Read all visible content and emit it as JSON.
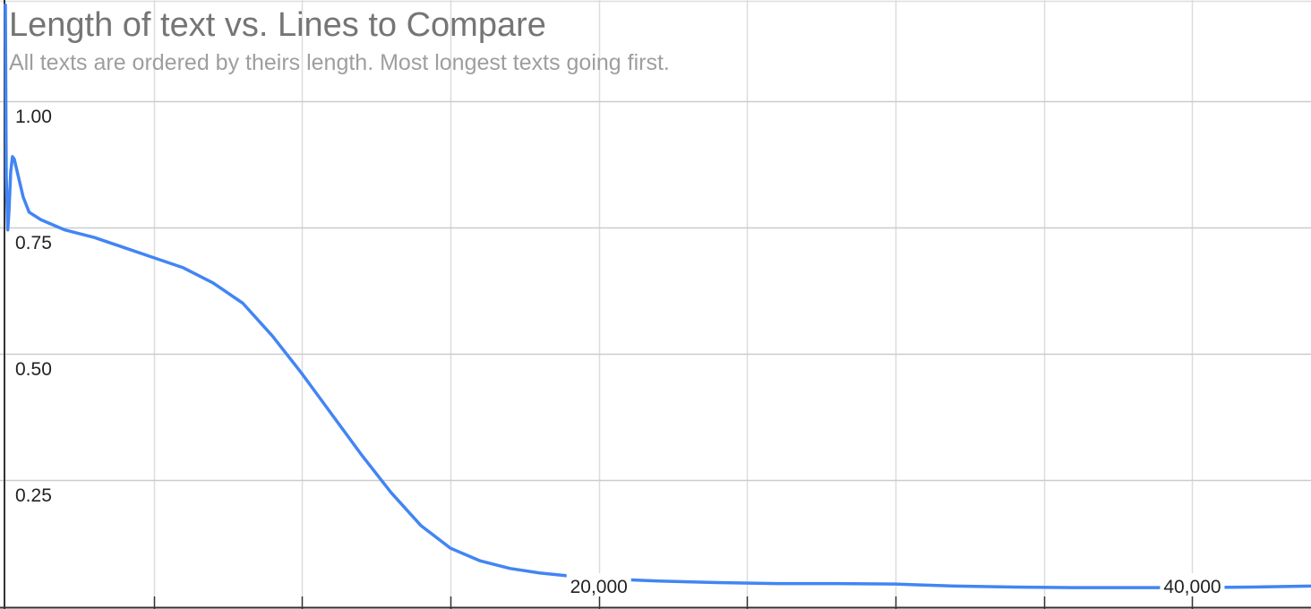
{
  "chart_data": {
    "type": "line",
    "title": "Length of text vs. Lines to Compare",
    "subtitle": "All texts are ordered by theirs length. Most longest texts going first.",
    "xlabel": "",
    "ylabel": "",
    "xlim": [
      0,
      44000
    ],
    "ylim": [
      0,
      1.2
    ],
    "x_ticks": [
      20000,
      40000
    ],
    "x_tick_labels": [
      "20,000",
      "40,000"
    ],
    "y_ticks": [
      0.25,
      0.5,
      0.75,
      1.0
    ],
    "y_tick_labels": [
      "0.25",
      "0.50",
      "0.75",
      "1.00"
    ],
    "grid": true,
    "legend": "none",
    "series": [
      {
        "color": "#4285f4",
        "x": [
          0,
          30,
          80,
          120,
          180,
          240,
          300,
          400,
          600,
          800,
          1200,
          2000,
          3000,
          4000,
          5000,
          6000,
          7000,
          8000,
          9000,
          10000,
          11000,
          12000,
          13000,
          14000,
          15000,
          16000,
          17000,
          18000,
          19000,
          20000,
          22000,
          24000,
          26000,
          28000,
          30000,
          32000,
          34000,
          36000,
          38000,
          40000,
          42000,
          44000
        ],
        "y": [
          1.19,
          0.85,
          0.745,
          0.78,
          0.86,
          0.89,
          0.885,
          0.86,
          0.81,
          0.78,
          0.765,
          0.745,
          0.73,
          0.71,
          0.69,
          0.67,
          0.64,
          0.6,
          0.535,
          0.46,
          0.38,
          0.3,
          0.225,
          0.16,
          0.115,
          0.09,
          0.075,
          0.066,
          0.06,
          0.055,
          0.05,
          0.047,
          0.045,
          0.045,
          0.044,
          0.04,
          0.038,
          0.037,
          0.037,
          0.037,
          0.038,
          0.04
        ]
      }
    ]
  }
}
